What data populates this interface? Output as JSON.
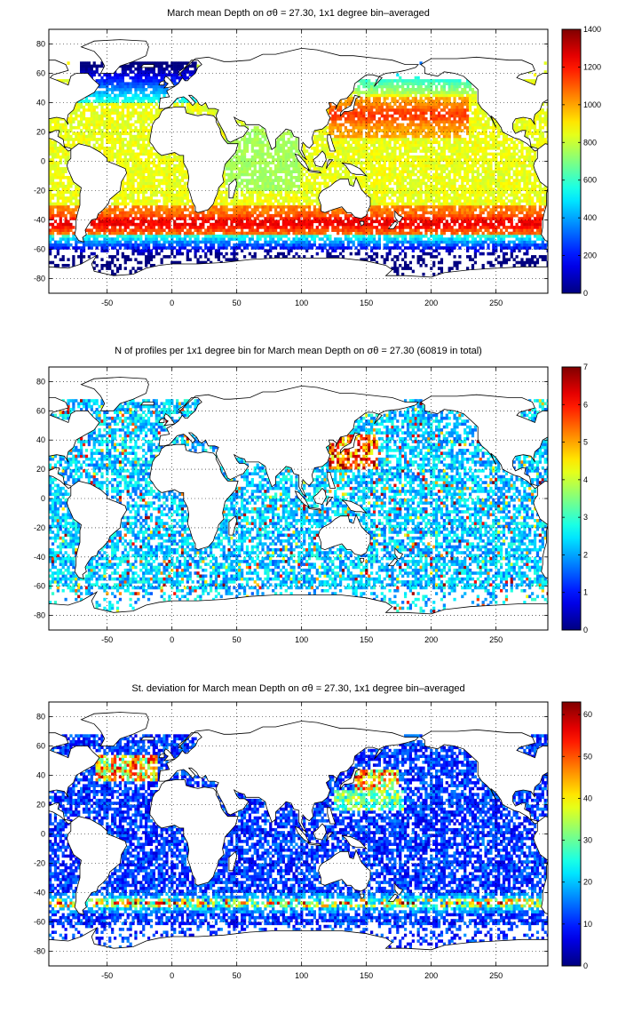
{
  "chart_data": [
    {
      "type": "heatmap",
      "title": "March mean Depth on σθ = 27.30, 1x1 degree bin–averaged",
      "x_ticks": [
        -50,
        0,
        50,
        100,
        150,
        200,
        250
      ],
      "y_ticks": [
        80,
        60,
        40,
        20,
        0,
        -20,
        -40,
        -60,
        -80
      ],
      "xlim": [
        -95,
        290
      ],
      "ylim": [
        -90,
        90
      ],
      "grid": true,
      "colorbar": {
        "range": [
          0,
          1400
        ],
        "ticks": [
          1400,
          1200,
          1000,
          800,
          600,
          400,
          200,
          0
        ],
        "colormap": "jet"
      },
      "field": "mean depth"
    },
    {
      "type": "heatmap",
      "title": "N of profiles per 1x1 degree bin for March mean Depth on σθ = 27.30 (60819 in total)",
      "x_ticks": [
        -50,
        0,
        50,
        100,
        150,
        200,
        250
      ],
      "y_ticks": [
        80,
        60,
        40,
        20,
        0,
        -20,
        -40,
        -60,
        -80
      ],
      "xlim": [
        -95,
        290
      ],
      "ylim": [
        -90,
        90
      ],
      "grid": true,
      "colorbar": {
        "range": [
          0,
          7
        ],
        "ticks": [
          7,
          6,
          5,
          4,
          3,
          2,
          1,
          0
        ],
        "colormap": "jet"
      },
      "field": "profile count"
    },
    {
      "type": "heatmap",
      "title": "St. deviation for March mean Depth on σθ = 27.30, 1x1 degree bin–averaged",
      "x_ticks": [
        -50,
        0,
        50,
        100,
        150,
        200,
        250
      ],
      "y_ticks": [
        80,
        60,
        40,
        20,
        0,
        -20,
        -40,
        -60,
        -80
      ],
      "xlim": [
        -95,
        290
      ],
      "ylim": [
        -90,
        90
      ],
      "grid": true,
      "colorbar": {
        "range": [
          0,
          63
        ],
        "ticks": [
          60,
          50,
          40,
          30,
          20,
          10,
          0
        ],
        "colormap": "jet"
      },
      "field": "standard deviation"
    }
  ]
}
